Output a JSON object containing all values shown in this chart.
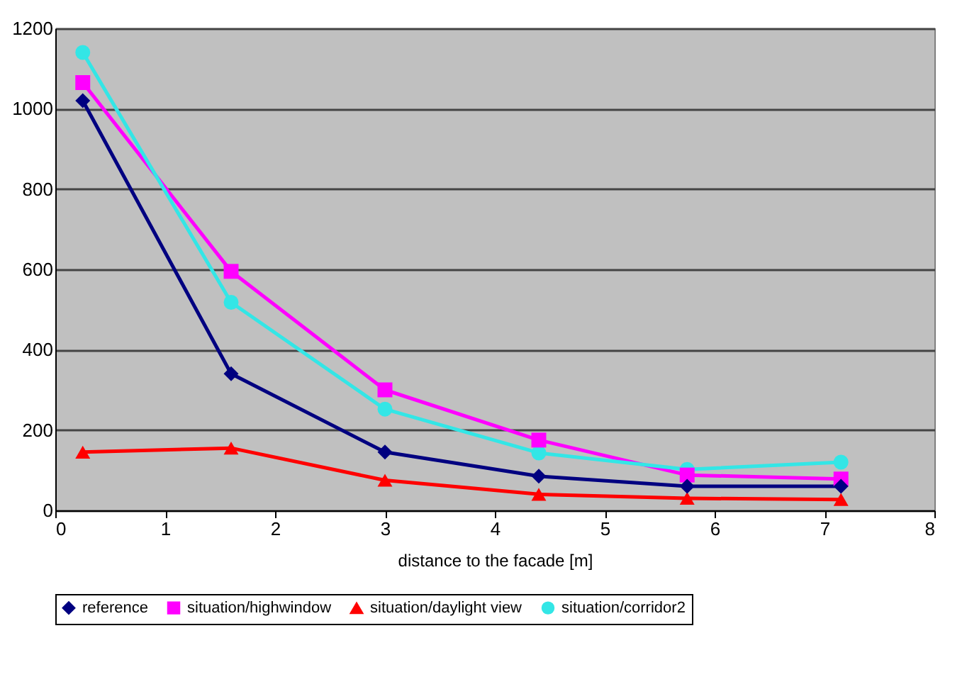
{
  "chart_data": {
    "type": "line",
    "xlabel": "distance to the facade [m]",
    "x": [
      0.25,
      1.6,
      3.0,
      4.4,
      5.75,
      7.15
    ],
    "series": [
      {
        "name": "reference",
        "color": "#000080",
        "marker": "diamond",
        "values": [
          1020,
          340,
          145,
          85,
          60,
          60
        ]
      },
      {
        "name": "situation/highwindow",
        "color": "#ff00ff",
        "marker": "square",
        "values": [
          1065,
          595,
          300,
          175,
          88,
          78
        ]
      },
      {
        "name": "situation/daylight view",
        "color": "#ff0000",
        "marker": "triangle",
        "values": [
          145,
          155,
          75,
          40,
          30,
          27
        ]
      },
      {
        "name": "situation/corridor2",
        "color": "#33e6e6",
        "marker": "circle",
        "values": [
          1140,
          518,
          252,
          143,
          102,
          120
        ]
      }
    ],
    "xlim": [
      0,
      8
    ],
    "xticks": [
      0,
      1,
      2,
      3,
      4,
      5,
      6,
      7,
      8
    ],
    "ylim": [
      0,
      1200
    ],
    "yticks": [
      0,
      200,
      400,
      600,
      800,
      1000,
      1200
    ],
    "grid": "y",
    "legend": "bottom",
    "line_style": "solid"
  }
}
